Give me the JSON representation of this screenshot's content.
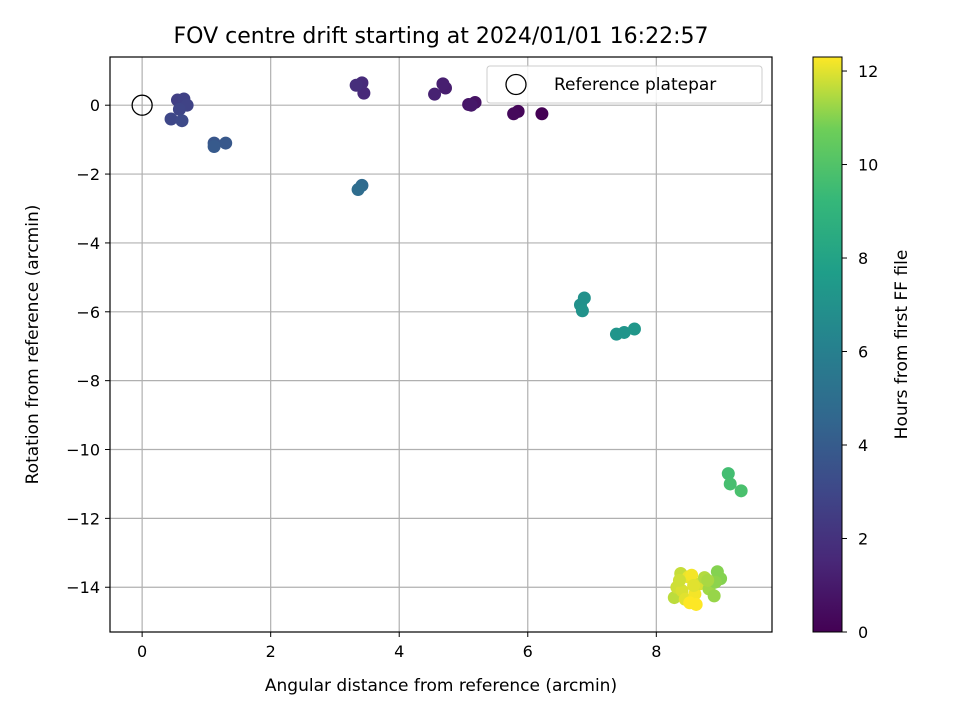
{
  "chart_data": {
    "type": "scatter",
    "title": "FOV centre drift starting at 2024/01/01 16:22:57",
    "xlabel": "Angular distance from reference (arcmin)",
    "ylabel": "Rotation from reference (arcmin)",
    "xlim": [
      -0.5,
      9.8
    ],
    "ylim": [
      -15.3,
      1.4
    ],
    "xticks": [
      0,
      2,
      4,
      6,
      8
    ],
    "yticks": [
      0,
      -2,
      -4,
      -6,
      -8,
      -10,
      -12,
      -14
    ],
    "grid": true,
    "legend": {
      "position": "top-right",
      "entries": [
        "Reference platepar"
      ]
    },
    "reference_point": {
      "x": 0,
      "y": 0,
      "label": "Reference platepar"
    },
    "colorbar": {
      "label": "Hours from first FF file",
      "range": [
        0,
        12.3
      ],
      "ticks": [
        0,
        2,
        4,
        6,
        8,
        10,
        12
      ],
      "colormap": "viridis"
    },
    "points": [
      {
        "x": 6.22,
        "y": -0.25,
        "h": 0.0
      },
      {
        "x": 5.85,
        "y": -0.18,
        "h": 0.2
      },
      {
        "x": 5.78,
        "y": -0.25,
        "h": 0.3
      },
      {
        "x": 5.18,
        "y": 0.08,
        "h": 0.7
      },
      {
        "x": 5.08,
        "y": 0.02,
        "h": 0.8
      },
      {
        "x": 5.12,
        "y": 0.0,
        "h": 0.9
      },
      {
        "x": 4.72,
        "y": 0.5,
        "h": 1.1
      },
      {
        "x": 4.68,
        "y": 0.62,
        "h": 1.2
      },
      {
        "x": 4.55,
        "y": 0.32,
        "h": 1.3
      },
      {
        "x": 3.45,
        "y": 0.35,
        "h": 1.6
      },
      {
        "x": 3.42,
        "y": 0.65,
        "h": 1.7
      },
      {
        "x": 3.33,
        "y": 0.58,
        "h": 1.8
      },
      {
        "x": 0.55,
        "y": 0.15,
        "h": 2.6
      },
      {
        "x": 0.65,
        "y": 0.18,
        "h": 2.7
      },
      {
        "x": 0.7,
        "y": 0.0,
        "h": 2.8
      },
      {
        "x": 0.58,
        "y": -0.12,
        "h": 2.9
      },
      {
        "x": 0.45,
        "y": -0.4,
        "h": 3.0
      },
      {
        "x": 0.62,
        "y": -0.45,
        "h": 3.1
      },
      {
        "x": 1.12,
        "y": -1.1,
        "h": 3.7
      },
      {
        "x": 1.3,
        "y": -1.1,
        "h": 3.8
      },
      {
        "x": 1.12,
        "y": -1.2,
        "h": 3.9
      },
      {
        "x": 3.42,
        "y": -2.33,
        "h": 4.8
      },
      {
        "x": 3.36,
        "y": -2.45,
        "h": 4.9
      },
      {
        "x": 6.88,
        "y": -5.6,
        "h": 7.0
      },
      {
        "x": 6.82,
        "y": -5.8,
        "h": 7.0
      },
      {
        "x": 6.85,
        "y": -5.97,
        "h": 7.1
      },
      {
        "x": 7.38,
        "y": -6.65,
        "h": 7.2
      },
      {
        "x": 7.5,
        "y": -6.6,
        "h": 7.2
      },
      {
        "x": 7.66,
        "y": -6.5,
        "h": 7.3
      },
      {
        "x": 9.12,
        "y": -10.7,
        "h": 9.6
      },
      {
        "x": 9.15,
        "y": -11.0,
        "h": 9.7
      },
      {
        "x": 9.32,
        "y": -11.2,
        "h": 9.8
      },
      {
        "x": 8.28,
        "y": -14.3,
        "h": 11.6
      },
      {
        "x": 8.38,
        "y": -13.6,
        "h": 11.7
      },
      {
        "x": 8.32,
        "y": -14.0,
        "h": 11.8
      },
      {
        "x": 8.4,
        "y": -14.1,
        "h": 11.9
      },
      {
        "x": 8.45,
        "y": -14.35,
        "h": 12.0
      },
      {
        "x": 8.5,
        "y": -13.7,
        "h": 12.1
      },
      {
        "x": 8.55,
        "y": -13.65,
        "h": 12.2
      },
      {
        "x": 8.6,
        "y": -14.2,
        "h": 12.2
      },
      {
        "x": 8.52,
        "y": -14.45,
        "h": 12.3
      },
      {
        "x": 8.62,
        "y": -14.5,
        "h": 12.3
      },
      {
        "x": 8.68,
        "y": -13.9,
        "h": 11.9
      },
      {
        "x": 8.75,
        "y": -13.72,
        "h": 11.5
      },
      {
        "x": 8.82,
        "y": -14.05,
        "h": 11.3
      },
      {
        "x": 8.9,
        "y": -14.25,
        "h": 11.2
      },
      {
        "x": 8.95,
        "y": -13.55,
        "h": 11.0
      },
      {
        "x": 9.0,
        "y": -13.75,
        "h": 11.0
      },
      {
        "x": 8.92,
        "y": -13.85,
        "h": 11.1
      },
      {
        "x": 8.58,
        "y": -13.95,
        "h": 12.0
      },
      {
        "x": 8.36,
        "y": -13.8,
        "h": 11.8
      },
      {
        "x": 8.8,
        "y": -13.8,
        "h": 11.4
      }
    ]
  }
}
